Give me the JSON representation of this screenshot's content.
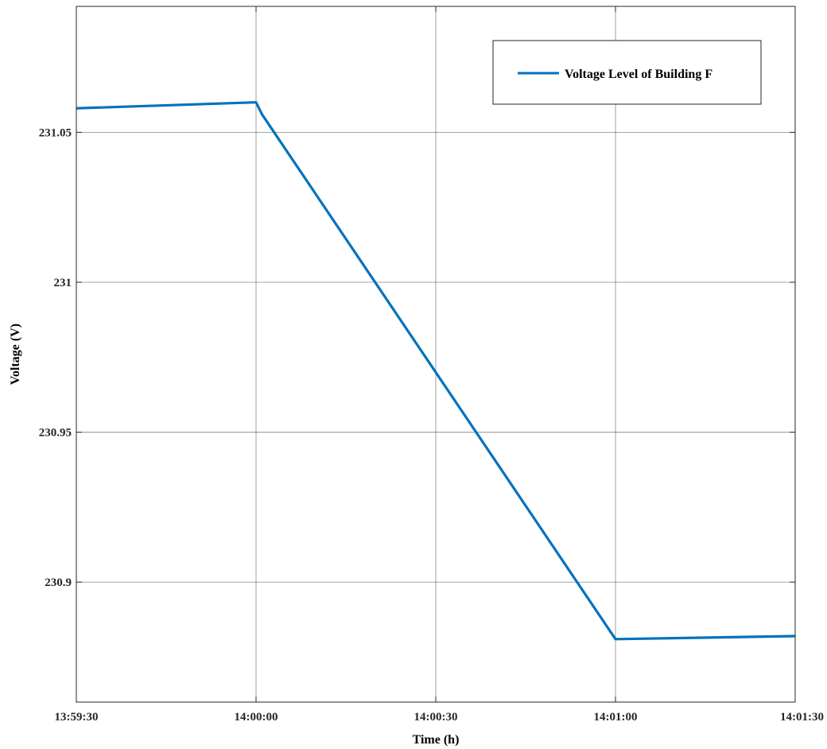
{
  "chart_data": {
    "type": "line",
    "title": "",
    "xlabel": "Time (h)",
    "ylabel": "Voltage (V)",
    "x_tick_labels": [
      "13:59:30",
      "14:00:00",
      "14:00:30",
      "14:01:00",
      "14:01:30"
    ],
    "x_tick_values": [
      "13:59:30",
      "14:00:00",
      "14:00:30",
      "14:01:00",
      "14:01:30"
    ],
    "xlim": [
      "13:59:30",
      "14:01:30"
    ],
    "y_tick_labels": [
      "230.9",
      "230.95",
      "231",
      "231.05"
    ],
    "y_tick_values": [
      230.9,
      230.95,
      231.0,
      231.05
    ],
    "ylim": [
      230.86,
      231.092
    ],
    "grid": true,
    "legend": {
      "position": "top-right"
    },
    "series": [
      {
        "name": "Voltage Level of Building F",
        "color": "#0072BD",
        "points": [
          {
            "x": "13:59:30",
            "y": 231.058
          },
          {
            "x": "14:00:00",
            "y": 231.06
          },
          {
            "x": "14:00:01",
            "y": 231.056
          },
          {
            "x": "14:01:00",
            "y": 230.881
          },
          {
            "x": "14:01:30",
            "y": 230.882
          }
        ]
      }
    ]
  }
}
